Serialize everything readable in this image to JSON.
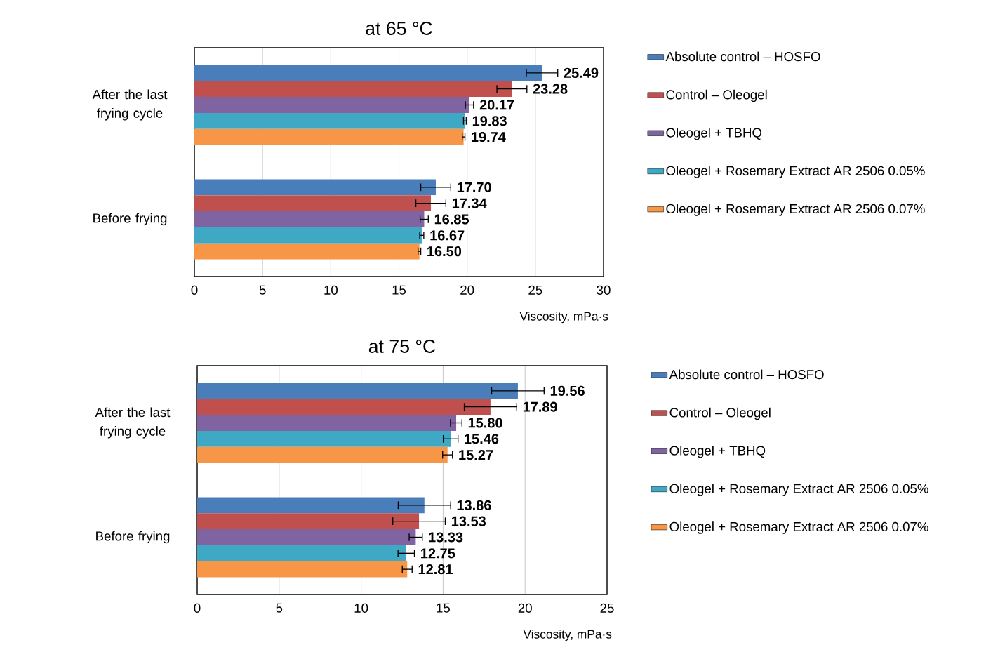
{
  "chart_data": [
    {
      "type": "bar",
      "orientation": "horizontal",
      "title": "at 65 °C",
      "xlabel": "Viscosity, mPa·s",
      "categories": [
        "After the last frying cycle",
        "Before frying"
      ],
      "series": [
        {
          "name": "Absolute control – HOSFO",
          "color": "#4a7ebb",
          "values": [
            25.49,
            17.7
          ],
          "errors": [
            1.15,
            1.1
          ],
          "value_labels": [
            "25.49",
            "17.70"
          ]
        },
        {
          "name": "Control – Oleogel",
          "color": "#c0504d",
          "values": [
            23.28,
            17.34
          ],
          "errors": [
            1.1,
            1.1
          ],
          "value_labels": [
            "23.28",
            "17.34"
          ]
        },
        {
          "name": "Oleogel + TBHQ",
          "color": "#8064a2",
          "values": [
            20.17,
            16.85
          ],
          "errors": [
            0.3,
            0.3
          ],
          "value_labels": [
            "20.17",
            "16.85"
          ]
        },
        {
          "name": "Oleogel + Rosemary Extract AR 2506 0.05%",
          "color": "#3fa9c5",
          "values": [
            19.83,
            16.67
          ],
          "errors": [
            0.1,
            0.15
          ],
          "value_labels": [
            "19.83",
            "16.67"
          ]
        },
        {
          "name": "Oleogel + Rosemary Extract AR 2506 0.07%",
          "color": "#f79646",
          "values": [
            19.74,
            16.5
          ],
          "errors": [
            0.1,
            0.1
          ],
          "value_labels": [
            "19.74",
            "16.50"
          ]
        }
      ],
      "xlim": [
        0,
        30
      ],
      "xticks": [
        0,
        5,
        10,
        15,
        20,
        25,
        30
      ],
      "grid": "x",
      "legend": "right"
    },
    {
      "type": "bar",
      "orientation": "horizontal",
      "title": "at 75 °C",
      "xlabel": "Viscosity, mPa·s",
      "categories": [
        "After the last frying cycle",
        "Before frying"
      ],
      "series": [
        {
          "name": "Absolute control – HOSFO",
          "color": "#4a7ebb",
          "values": [
            19.56,
            13.86
          ],
          "errors": [
            1.6,
            1.6
          ],
          "value_labels": [
            "19.56",
            "13.86"
          ]
        },
        {
          "name": "Control – Oleogel",
          "color": "#c0504d",
          "values": [
            17.89,
            13.53
          ],
          "errors": [
            1.6,
            1.6
          ],
          "value_labels": [
            "17.89",
            "13.53"
          ]
        },
        {
          "name": "Oleogel + TBHQ",
          "color": "#8064a2",
          "values": [
            15.8,
            13.33
          ],
          "errors": [
            0.35,
            0.4
          ],
          "value_labels": [
            "15.80",
            "13.33"
          ]
        },
        {
          "name": "Oleogel + Rosemary Extract AR 2506 0.05%",
          "color": "#3fa9c5",
          "values": [
            15.46,
            12.75
          ],
          "errors": [
            0.45,
            0.5
          ],
          "value_labels": [
            "15.46",
            "12.75"
          ]
        },
        {
          "name": "Oleogel + Rosemary Extract AR 2506 0.07%",
          "color": "#f79646",
          "values": [
            15.27,
            12.81
          ],
          "errors": [
            0.3,
            0.3
          ],
          "value_labels": [
            "15.27",
            "12.81"
          ]
        }
      ],
      "xlim": [
        0,
        25
      ],
      "xticks": [
        0,
        5,
        10,
        15,
        20,
        25
      ],
      "grid": "x",
      "legend": "right"
    }
  ]
}
